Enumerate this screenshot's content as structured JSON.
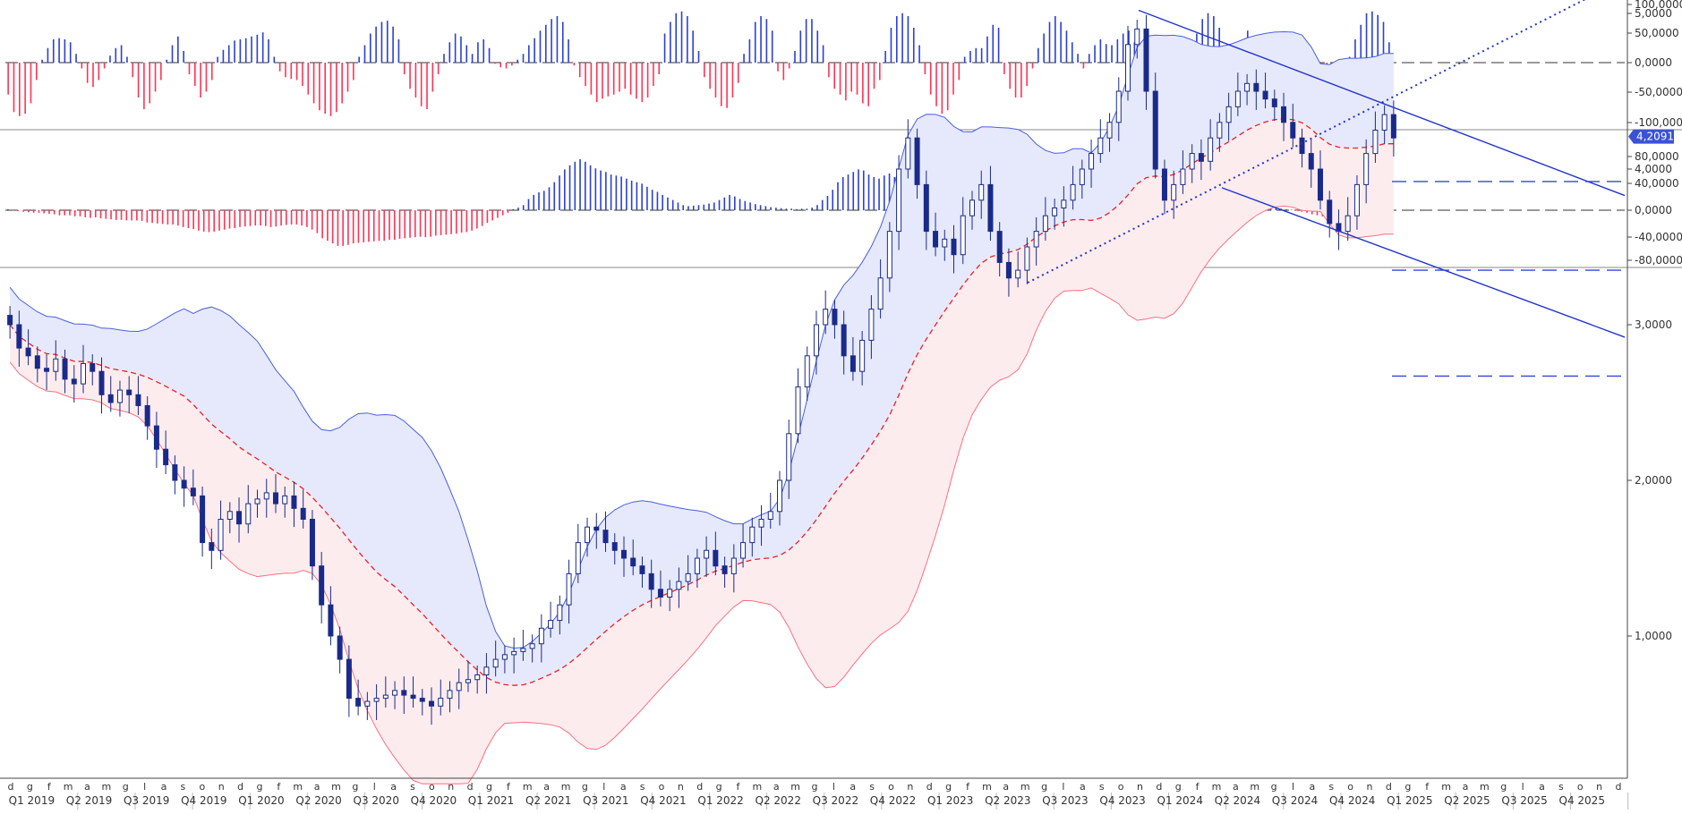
{
  "chart_data": [
    {
      "panel": "oscillator-1",
      "type": "bar",
      "yticks": [
        "100,0000",
        "50,0000",
        "0,0000",
        "-50,0000",
        "-100,0000"
      ],
      "ylim": [
        -110,
        110
      ],
      "colors": {
        "positive": "#2b3fd6",
        "negative": "#ff3355"
      },
      "zero_line": "dashed",
      "values": [
        -55,
        -85,
        -92,
        -88,
        -70,
        -30,
        5,
        25,
        40,
        42,
        40,
        35,
        15,
        -10,
        -35,
        -42,
        -30,
        -10,
        12,
        25,
        30,
        10,
        -25,
        -60,
        -80,
        -70,
        -50,
        -30,
        5,
        30,
        45,
        20,
        -20,
        -40,
        -60,
        -50,
        -30,
        10,
        22,
        30,
        38,
        40,
        42,
        45,
        48,
        52,
        40,
        10,
        -15,
        -25,
        -28,
        -30,
        -40,
        -55,
        -70,
        -82,
        -88,
        -92,
        -85,
        -70,
        -50,
        -30,
        10,
        30,
        50,
        62,
        70,
        72,
        62,
        40,
        -20,
        -45,
        -60,
        -75,
        -80,
        -50,
        -20,
        15,
        35,
        50,
        45,
        30,
        15,
        35,
        40,
        25,
        -2,
        -8,
        -10,
        -5,
        5,
        15,
        30,
        42,
        55,
        65,
        75,
        80,
        70,
        40,
        -5,
        -25,
        -40,
        -55,
        -68,
        -62,
        -58,
        -55,
        -50,
        -45,
        -55,
        -62,
        -68,
        -60,
        -40,
        -20,
        50,
        70,
        85,
        88,
        80,
        55,
        20,
        -25,
        -45,
        -60,
        -75,
        -78,
        -60,
        -35,
        15,
        40,
        70,
        80,
        75,
        55,
        -15,
        -30,
        -10,
        20,
        55,
        75,
        75,
        55,
        30,
        -25,
        -45,
        -55,
        -65,
        -50,
        -55,
        -70,
        -75,
        -45,
        -30,
        20,
        60,
        80,
        85,
        80,
        60,
        30,
        -20,
        -55,
        -75,
        -88,
        -82,
        -55,
        -30,
        10,
        20,
        25,
        25,
        45,
        65,
        60,
        -20,
        -45,
        -60,
        -60,
        -40,
        -10,
        25,
        50,
        70,
        80,
        70,
        55,
        35,
        15,
        -10,
        15,
        30,
        40,
        32,
        30,
        40,
        50,
        55,
        35,
        -5,
        -30,
        -55,
        -75,
        -88,
        -90,
        -78,
        -55,
        -30,
        15,
        50,
        75,
        85,
        80,
        60,
        20,
        -10,
        -20,
        35,
        55,
        45,
        30,
        -5,
        -30,
        -50,
        -65,
        -75,
        -70,
        -60,
        -55,
        -50,
        -55,
        -60,
        -70,
        -55,
        -40,
        -30,
        10,
        40,
        65,
        85,
        88,
        82,
        70,
        35
      ]
    },
    {
      "panel": "oscillator-2",
      "type": "bar",
      "yticks": [
        "80,0000",
        "40,0000",
        "0,0000",
        "-40,0000",
        "-80,0000"
      ],
      "ylim": [
        -85,
        110
      ],
      "colors": {
        "positive": "#2b3fd6",
        "negative": "#ff3355"
      },
      "zero_line": "dashed",
      "values": [
        2,
        -1,
        -2,
        -3,
        -4,
        -5,
        -5,
        -6,
        -7,
        -8,
        -10,
        -10,
        -10,
        -12,
        -12,
        -14,
        -15,
        -14,
        -16,
        -17,
        -18,
        -19,
        -19,
        -20,
        -20,
        -20,
        -21,
        -24,
        -25,
        -26,
        -27,
        -28,
        -28,
        -30,
        -33,
        -35,
        -37,
        -40,
        -42,
        -43,
        -42,
        -40,
        -38,
        -36,
        -35,
        -33,
        -32,
        -31,
        -30,
        -30,
        -31,
        -33,
        -32,
        -30,
        -29,
        -28,
        -28,
        -30,
        -33,
        -38,
        -45,
        -55,
        -60,
        -65,
        -70,
        -70,
        -68,
        -65,
        -64,
        -63,
        -62,
        -61,
        -60,
        -60,
        -58,
        -58,
        -56,
        -55,
        -54,
        -53,
        -52,
        -53,
        -52,
        -50,
        -49,
        -48,
        -47,
        -46,
        -44,
        -43,
        -40,
        -36,
        -31,
        -25,
        -20,
        -15,
        -10,
        -5,
        2,
        5,
        10,
        22,
        30,
        35,
        38,
        45,
        55,
        68,
        80,
        88,
        95,
        100,
        95,
        88,
        82,
        78,
        75,
        70,
        68,
        66,
        62,
        58,
        55,
        52,
        46,
        40,
        36,
        30,
        25,
        20,
        15,
        10,
        8,
        9,
        10,
        11,
        13,
        15,
        20,
        25,
        30,
        27,
        22,
        18,
        15,
        12,
        10,
        8,
        6,
        5,
        4,
        3,
        3,
        2,
        3,
        3,
        5,
        10,
        20,
        28,
        40,
        55,
        65,
        70,
        75,
        80,
        78,
        70,
        65,
        62,
        68,
        72,
        65,
        55,
        48,
        43,
        40,
        45,
        48,
        52,
        55,
        58,
        60,
        62,
        60,
        58,
        52,
        48,
        44,
        40,
        35,
        30,
        28,
        26,
        24,
        22,
        20,
        18,
        16,
        14,
        12,
        10,
        8,
        6,
        5,
        4,
        3,
        3,
        4,
        5,
        6,
        7,
        8,
        9,
        10,
        12,
        14,
        16,
        18,
        20,
        22,
        25,
        28,
        25,
        20,
        15,
        12,
        10,
        8,
        5,
        3,
        2,
        2,
        3,
        4,
        5,
        6,
        6,
        5,
        5,
        6,
        8,
        8,
        7,
        6,
        5,
        4,
        3,
        2,
        1,
        -1,
        -3,
        -5,
        -8,
        -10,
        -12,
        -14,
        -15,
        -14,
        -12,
        -10,
        -8,
        -6,
        -2,
        2,
        5,
        6,
        3,
        1
      ]
    },
    {
      "panel": "price",
      "type": "candlestick",
      "yticks": [
        "5,0000",
        "4,0000",
        "3,0000",
        "2,0000",
        "1,0000"
      ],
      "ylim": [
        0.1,
        5.2
      ],
      "last_value": "4,2091",
      "months": [
        "d",
        "g",
        "f",
        "m",
        "a",
        "m",
        "g",
        "l",
        "a",
        "s",
        "o",
        "n",
        "d",
        "g",
        "f",
        "m",
        "a",
        "m",
        "g",
        "l",
        "a",
        "s",
        "o",
        "n",
        "d",
        "g",
        "f",
        "m",
        "a",
        "m",
        "g",
        "l",
        "a",
        "s",
        "o",
        "n",
        "d",
        "g",
        "f",
        "m",
        "a",
        "m",
        "g",
        "l",
        "a",
        "s",
        "o",
        "n",
        "d",
        "g",
        "f",
        "m",
        "a",
        "m",
        "g",
        "l",
        "a",
        "s",
        "o",
        "n",
        "d",
        "g",
        "f",
        "m",
        "a",
        "m",
        "g",
        "l",
        "a",
        "s",
        "o",
        "n",
        "d",
        "g",
        "f",
        "m",
        "a",
        "m",
        "g",
        "l",
        "a",
        "s",
        "o",
        "n",
        "d"
      ],
      "quarters": [
        "Q1 2019",
        "Q2 2019",
        "Q3 2019",
        "Q4 2019",
        "Q1 2020",
        "Q2 2020",
        "Q3 2020",
        "Q4 2020",
        "Q1 2021",
        "Q2 2021",
        "Q3 2021",
        "Q4 2021",
        "Q1 2022",
        "Q2 2022",
        "Q3 2022",
        "Q4 2022",
        "Q1 2023",
        "Q2 2023",
        "Q3 2023",
        "Q4 2023",
        "Q1 2024",
        "Q2 2024",
        "Q3 2024",
        "Q4 2024",
        "Q1 2025",
        "Q2 2025",
        "Q3 2025",
        "Q4 2025"
      ],
      "closes": [
        3.0,
        2.85,
        2.8,
        2.72,
        2.7,
        2.78,
        2.65,
        2.62,
        2.75,
        2.7,
        2.55,
        2.5,
        2.58,
        2.55,
        2.48,
        2.35,
        2.2,
        2.1,
        2.0,
        1.95,
        1.9,
        1.6,
        1.55,
        1.75,
        1.8,
        1.72,
        1.85,
        1.88,
        1.92,
        1.85,
        1.9,
        1.82,
        1.75,
        1.45,
        1.2,
        1.0,
        0.85,
        0.6,
        0.55,
        0.58,
        0.6,
        0.62,
        0.65,
        0.62,
        0.6,
        0.58,
        0.55,
        0.6,
        0.65,
        0.7,
        0.72,
        0.75,
        0.8,
        0.85,
        0.88,
        0.9,
        0.92,
        0.95,
        1.05,
        1.1,
        1.2,
        1.4,
        1.6,
        1.7,
        1.68,
        1.6,
        1.55,
        1.5,
        1.45,
        1.4,
        1.3,
        1.25,
        1.3,
        1.35,
        1.4,
        1.5,
        1.55,
        1.45,
        1.4,
        1.5,
        1.6,
        1.7,
        1.75,
        1.8,
        2.0,
        2.3,
        2.6,
        2.8,
        3.0,
        3.1,
        3.0,
        2.8,
        2.7,
        2.9,
        3.1,
        3.3,
        3.6,
        4.0,
        4.2,
        3.9,
        3.6,
        3.5,
        3.55,
        3.45,
        3.7,
        3.8,
        3.9,
        3.6,
        3.4,
        3.3,
        3.35,
        3.5,
        3.6,
        3.7,
        3.75,
        3.8,
        3.9,
        4.0,
        4.1,
        4.2,
        4.3,
        4.5,
        4.8,
        4.9,
        4.5,
        4.0,
        3.8,
        3.9,
        4.0,
        4.1,
        4.05,
        4.2,
        4.3,
        4.4,
        4.5,
        4.55,
        4.5,
        4.45,
        4.4,
        4.3,
        4.2,
        4.1,
        4.0,
        3.8,
        3.65,
        3.6,
        3.7,
        3.9,
        4.1,
        4.25,
        4.35,
        4.2
      ]
    }
  ]
}
